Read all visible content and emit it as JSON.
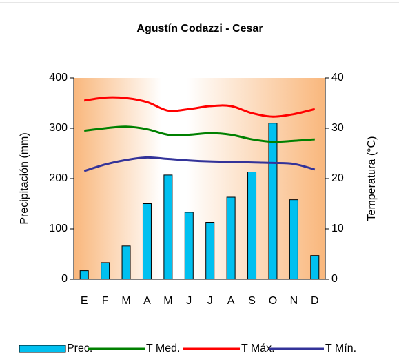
{
  "chart_data": {
    "type": "bar-line",
    "title": "Agustín Codazzi - Cesar",
    "categories": [
      "E",
      "F",
      "M",
      "A",
      "M",
      "J",
      "J",
      "A",
      "S",
      "O",
      "N",
      "D"
    ],
    "ylabel": "Precipitación (mm)",
    "y2label": "Temperatura (°C)",
    "ylim": [
      0,
      400
    ],
    "yticks": [
      0,
      100,
      200,
      300,
      400
    ],
    "y2lim": [
      0,
      40
    ],
    "y2ticks": [
      0,
      10,
      20,
      30,
      40
    ],
    "grid": false,
    "legend": "bottom",
    "series": [
      {
        "name": "Prec.",
        "type": "bar",
        "color": "#00c0f0",
        "values": [
          17,
          33,
          66,
          150,
          207,
          133,
          113,
          163,
          213,
          310,
          158,
          47
        ]
      },
      {
        "name": "T Med.",
        "type": "line",
        "axis": "y2",
        "color": "#008000",
        "values": [
          29.5,
          30,
          30.3,
          29.8,
          28.7,
          28.7,
          29,
          28.7,
          27.8,
          27.3,
          27.5,
          27.8
        ]
      },
      {
        "name": "T Máx.",
        "type": "line",
        "axis": "y2",
        "color": "#ff0000",
        "values": [
          35.5,
          36.1,
          36,
          35.2,
          33.5,
          33.8,
          34.4,
          34.4,
          33,
          32.3,
          32.8,
          33.8
        ]
      },
      {
        "name": "T Mín.",
        "type": "line",
        "axis": "y2",
        "color": "#333399",
        "values": [
          21.5,
          22.8,
          23.7,
          24.2,
          23.9,
          23.6,
          23.4,
          23.3,
          23.2,
          23.1,
          22.9,
          21.8
        ]
      }
    ]
  }
}
